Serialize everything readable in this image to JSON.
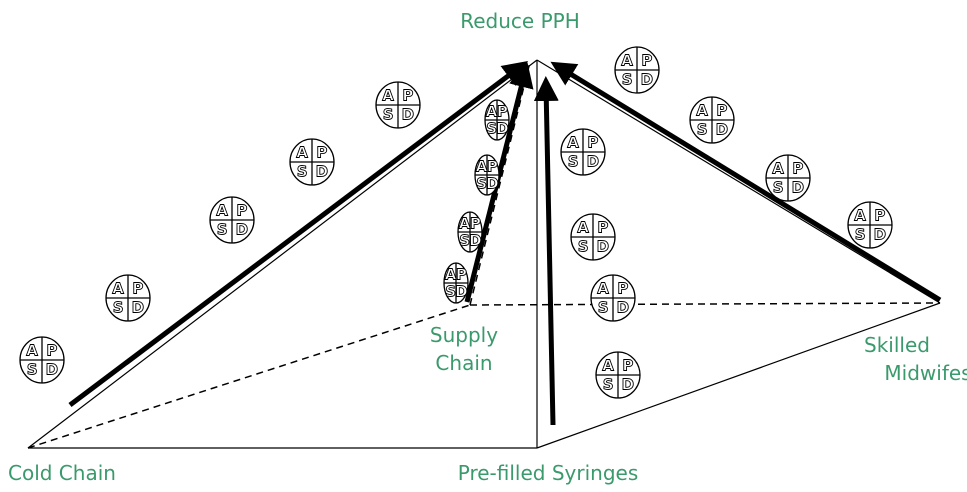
{
  "goal": "Reduce PPH",
  "nodes": [
    {
      "lines": [
        "Cold Chain"
      ]
    },
    {
      "lines": [
        "Supply",
        "Chain"
      ]
    },
    {
      "lines": [
        "Pre-filled Syringes"
      ]
    },
    {
      "lines": [
        "Skilled",
        "Midwifes"
      ]
    }
  ],
  "pdsa": {
    "a": "A",
    "p": "P",
    "s": "S",
    "d": "D"
  }
}
